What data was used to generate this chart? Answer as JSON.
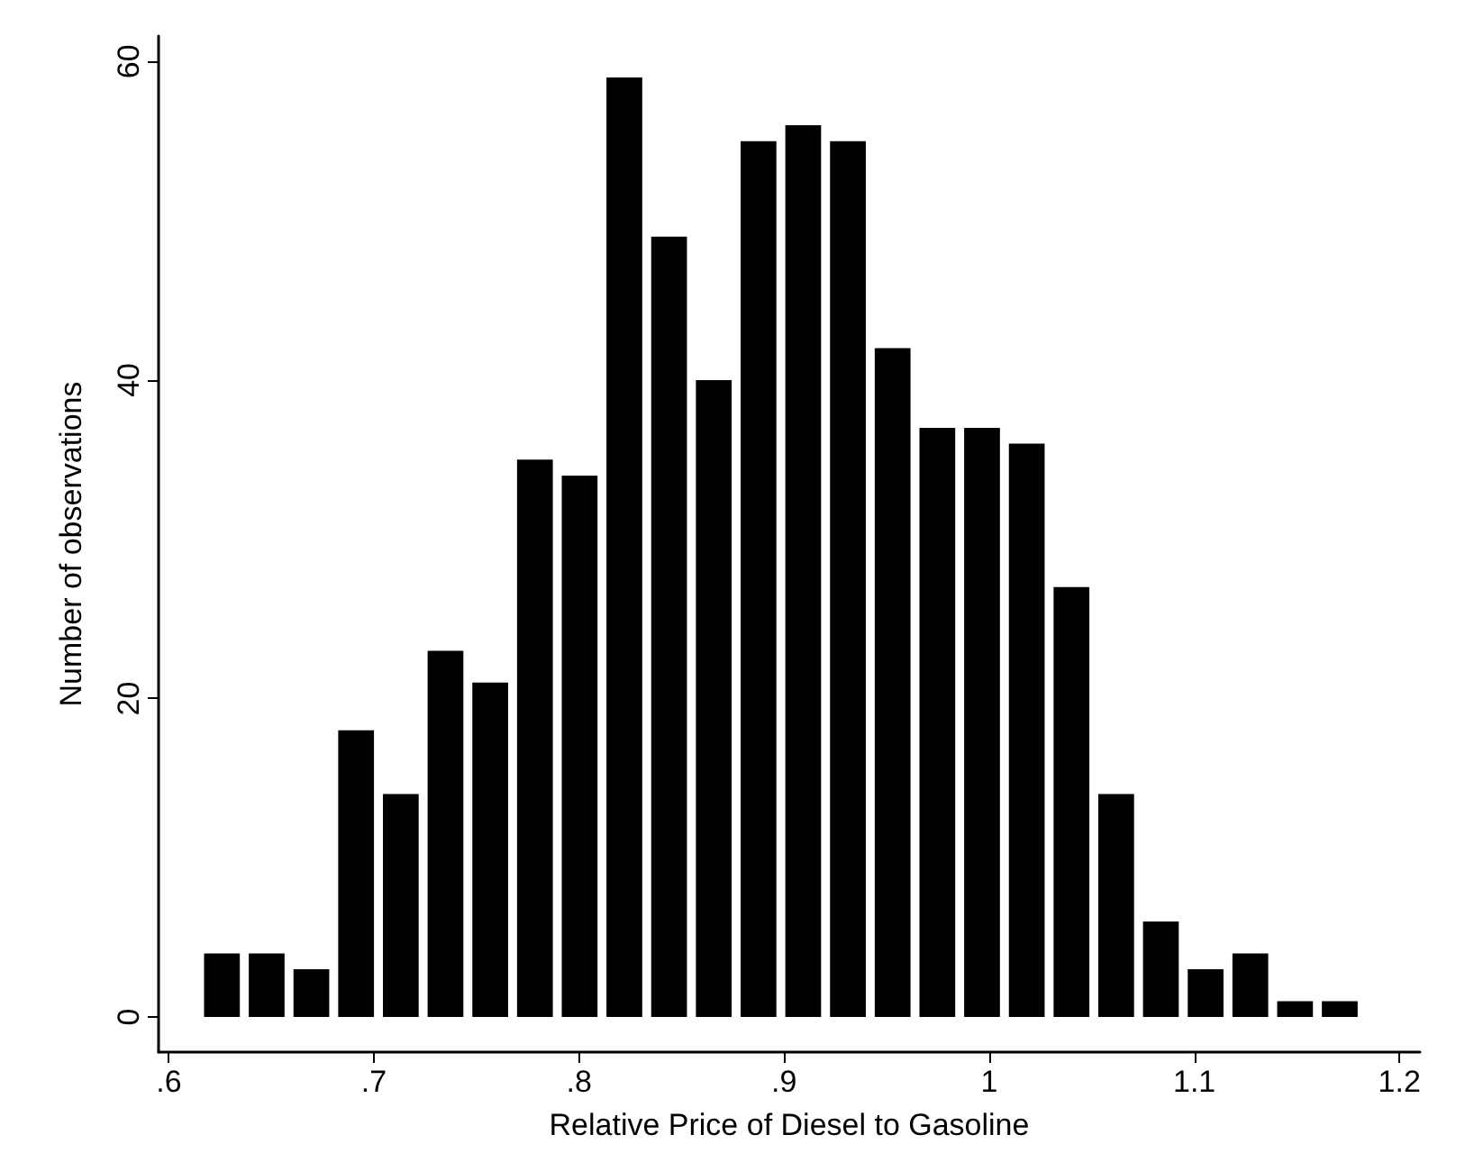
{
  "chart_data": {
    "type": "histogram",
    "xlabel": "Relative Price of Diesel to Gasoline",
    "ylabel": "Number of observations",
    "color": "#000000",
    "bins": [
      0.615,
      0.6368,
      0.6586,
      0.6804,
      0.7022,
      0.724,
      0.7458,
      0.7676,
      0.7894,
      0.8112,
      0.833,
      0.8548,
      0.8766,
      0.8984,
      0.9202,
      0.942,
      0.9638,
      0.9856,
      1.0074,
      1.0292,
      1.051,
      1.0728,
      1.0946,
      1.1164,
      1.1382,
      1.16,
      1.1818
    ],
    "values": [
      4,
      4,
      3,
      18,
      14,
      23,
      21,
      35,
      34,
      59,
      49,
      40,
      55,
      56,
      55,
      42,
      37,
      37,
      36,
      27,
      14,
      6,
      3,
      4,
      1,
      1
    ],
    "xlim": [
      0.595,
      1.21
    ],
    "ylim": [
      -2.2,
      61.6
    ],
    "xticks": [
      {
        "value": 0.6,
        "label": ".6"
      },
      {
        "value": 0.7,
        "label": ".7"
      },
      {
        "value": 0.8,
        "label": ".8"
      },
      {
        "value": 0.9,
        "label": ".9"
      },
      1,
      {
        "value": 1.1,
        "label": "1.1"
      },
      {
        "value": 1.2,
        "label": "1.2"
      }
    ],
    "yticks": [
      0,
      20,
      40,
      60
    ],
    "grid": false
  }
}
